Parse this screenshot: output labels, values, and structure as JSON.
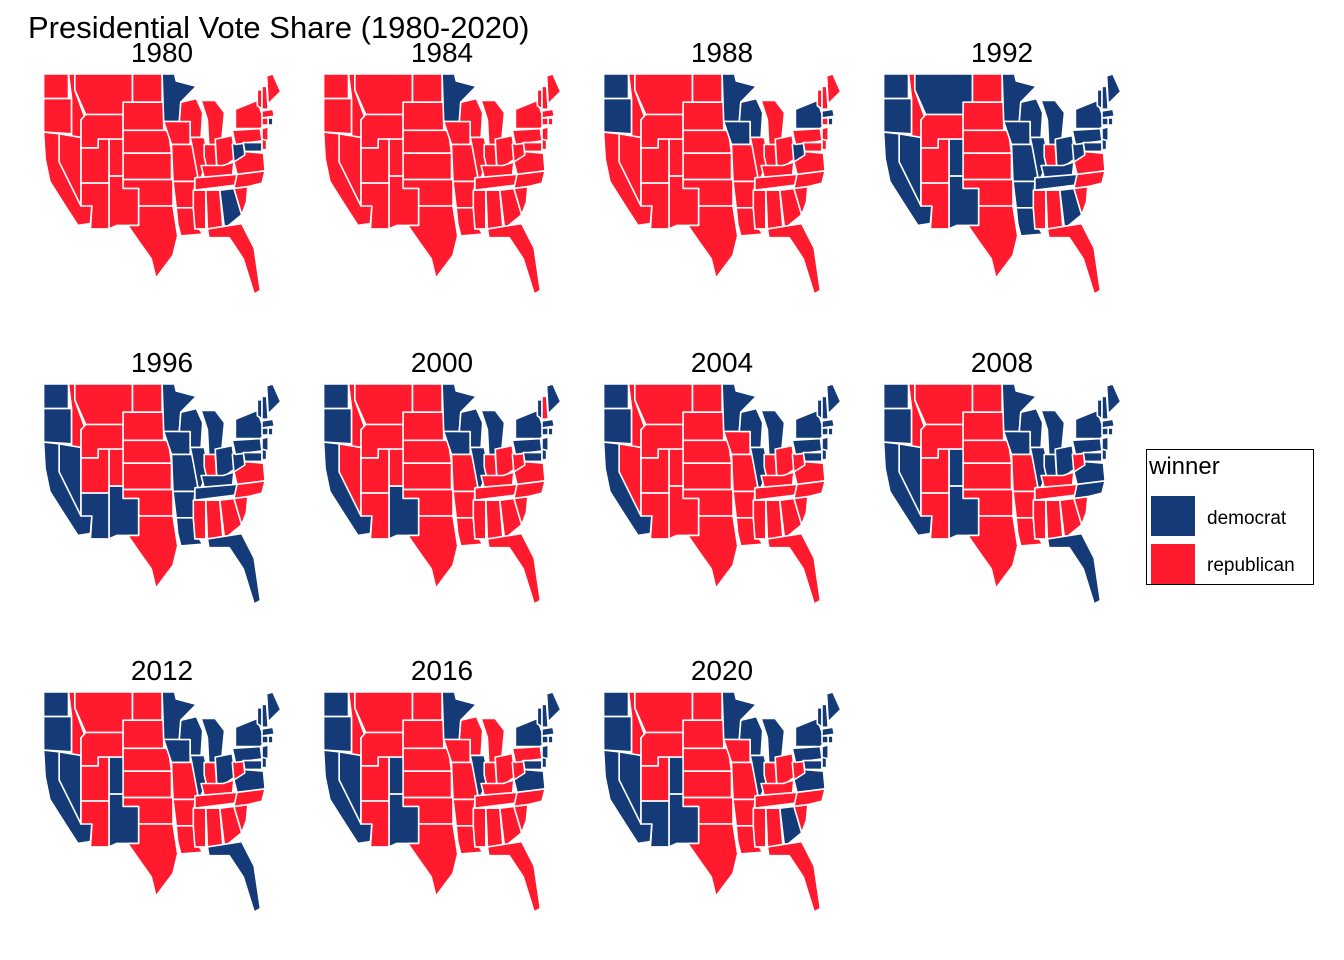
{
  "title": "Presidential Vote Share (1980-2020)",
  "colors": {
    "democrat": "#143a78",
    "republican": "#ff1a2e",
    "border": "#ffffff"
  },
  "legend": {
    "title": "winner",
    "items": [
      {
        "label": "democrat",
        "key": "democrat"
      },
      {
        "label": "republican",
        "key": "republican"
      }
    ]
  },
  "panels": [
    {
      "year": "1980",
      "winners": {
        "WA": "R",
        "OR": "R",
        "CA": "R",
        "ID": "R",
        "NV": "R",
        "MT": "R",
        "WY": "R",
        "UT": "R",
        "AZ": "R",
        "CO": "R",
        "NM": "R",
        "ND": "R",
        "SD": "R",
        "NE": "R",
        "KS": "R",
        "OK": "R",
        "TX": "R",
        "MN": "D",
        "IA": "R",
        "MO": "R",
        "AR": "R",
        "LA": "R",
        "WI": "R",
        "IL": "R",
        "MI": "R",
        "IN": "R",
        "OH": "R",
        "KY": "R",
        "TN": "R",
        "MS": "R",
        "AL": "R",
        "GA": "D",
        "FL": "R",
        "SC": "R",
        "NC": "R",
        "VA": "R",
        "WV": "D",
        "PA": "R",
        "NY": "R",
        "MD": "D",
        "DE": "R",
        "NJ": "R",
        "VT": "R",
        "NH": "R",
        "ME": "R",
        "MA": "R",
        "CT": "R",
        "RI": "D"
      }
    },
    {
      "year": "1984",
      "winners": {
        "WA": "R",
        "OR": "R",
        "CA": "R",
        "ID": "R",
        "NV": "R",
        "MT": "R",
        "WY": "R",
        "UT": "R",
        "AZ": "R",
        "CO": "R",
        "NM": "R",
        "ND": "R",
        "SD": "R",
        "NE": "R",
        "KS": "R",
        "OK": "R",
        "TX": "R",
        "MN": "D",
        "IA": "R",
        "MO": "R",
        "AR": "R",
        "LA": "R",
        "WI": "R",
        "IL": "R",
        "MI": "R",
        "IN": "R",
        "OH": "R",
        "KY": "R",
        "TN": "R",
        "MS": "R",
        "AL": "R",
        "GA": "R",
        "FL": "R",
        "SC": "R",
        "NC": "R",
        "VA": "R",
        "WV": "R",
        "PA": "R",
        "NY": "R",
        "MD": "R",
        "DE": "R",
        "NJ": "R",
        "VT": "R",
        "NH": "R",
        "ME": "R",
        "MA": "R",
        "CT": "R",
        "RI": "R"
      }
    },
    {
      "year": "1988",
      "winners": {
        "WA": "D",
        "OR": "D",
        "CA": "R",
        "ID": "R",
        "NV": "R",
        "MT": "R",
        "WY": "R",
        "UT": "R",
        "AZ": "R",
        "CO": "R",
        "NM": "R",
        "ND": "R",
        "SD": "R",
        "NE": "R",
        "KS": "R",
        "OK": "R",
        "TX": "R",
        "MN": "D",
        "IA": "D",
        "MO": "R",
        "AR": "R",
        "LA": "R",
        "WI": "D",
        "IL": "R",
        "MI": "R",
        "IN": "R",
        "OH": "R",
        "KY": "R",
        "TN": "R",
        "MS": "R",
        "AL": "R",
        "GA": "R",
        "FL": "R",
        "SC": "R",
        "NC": "R",
        "VA": "R",
        "WV": "D",
        "PA": "R",
        "NY": "D",
        "MD": "R",
        "DE": "R",
        "NJ": "R",
        "VT": "R",
        "NH": "R",
        "ME": "R",
        "MA": "D",
        "CT": "R",
        "RI": "D"
      }
    },
    {
      "year": "1992",
      "winners": {
        "WA": "D",
        "OR": "D",
        "CA": "D",
        "ID": "R",
        "NV": "D",
        "MT": "D",
        "WY": "R",
        "UT": "R",
        "AZ": "R",
        "CO": "D",
        "NM": "D",
        "ND": "R",
        "SD": "R",
        "NE": "R",
        "KS": "R",
        "OK": "R",
        "TX": "R",
        "MN": "D",
        "IA": "D",
        "MO": "D",
        "AR": "D",
        "LA": "D",
        "WI": "D",
        "IL": "D",
        "MI": "D",
        "IN": "R",
        "OH": "D",
        "KY": "D",
        "TN": "D",
        "MS": "R",
        "AL": "R",
        "GA": "D",
        "FL": "R",
        "SC": "R",
        "NC": "R",
        "VA": "R",
        "WV": "D",
        "PA": "D",
        "NY": "D",
        "MD": "D",
        "DE": "D",
        "NJ": "D",
        "VT": "D",
        "NH": "D",
        "ME": "D",
        "MA": "D",
        "CT": "D",
        "RI": "D"
      }
    },
    {
      "year": "1996",
      "winners": {
        "WA": "D",
        "OR": "D",
        "CA": "D",
        "ID": "R",
        "NV": "D",
        "MT": "R",
        "WY": "R",
        "UT": "R",
        "AZ": "D",
        "CO": "R",
        "NM": "D",
        "ND": "R",
        "SD": "R",
        "NE": "R",
        "KS": "R",
        "OK": "R",
        "TX": "R",
        "MN": "D",
        "IA": "D",
        "MO": "D",
        "AR": "D",
        "LA": "D",
        "WI": "D",
        "IL": "D",
        "MI": "D",
        "IN": "R",
        "OH": "D",
        "KY": "D",
        "TN": "D",
        "MS": "R",
        "AL": "R",
        "GA": "R",
        "FL": "D",
        "SC": "R",
        "NC": "R",
        "VA": "R",
        "WV": "D",
        "PA": "D",
        "NY": "D",
        "MD": "D",
        "DE": "D",
        "NJ": "D",
        "VT": "D",
        "NH": "D",
        "ME": "D",
        "MA": "D",
        "CT": "D",
        "RI": "D"
      }
    },
    {
      "year": "2000",
      "winners": {
        "WA": "D",
        "OR": "D",
        "CA": "D",
        "ID": "R",
        "NV": "R",
        "MT": "R",
        "WY": "R",
        "UT": "R",
        "AZ": "R",
        "CO": "R",
        "NM": "D",
        "ND": "R",
        "SD": "R",
        "NE": "R",
        "KS": "R",
        "OK": "R",
        "TX": "R",
        "MN": "D",
        "IA": "D",
        "MO": "R",
        "AR": "R",
        "LA": "R",
        "WI": "D",
        "IL": "D",
        "MI": "D",
        "IN": "R",
        "OH": "R",
        "KY": "R",
        "TN": "R",
        "MS": "R",
        "AL": "R",
        "GA": "R",
        "FL": "R",
        "SC": "R",
        "NC": "R",
        "VA": "R",
        "WV": "R",
        "PA": "D",
        "NY": "D",
        "MD": "D",
        "DE": "D",
        "NJ": "D",
        "VT": "D",
        "NH": "R",
        "ME": "D",
        "MA": "D",
        "CT": "D",
        "RI": "D"
      }
    },
    {
      "year": "2004",
      "winners": {
        "WA": "D",
        "OR": "D",
        "CA": "D",
        "ID": "R",
        "NV": "R",
        "MT": "R",
        "WY": "R",
        "UT": "R",
        "AZ": "R",
        "CO": "R",
        "NM": "R",
        "ND": "R",
        "SD": "R",
        "NE": "R",
        "KS": "R",
        "OK": "R",
        "TX": "R",
        "MN": "D",
        "IA": "R",
        "MO": "R",
        "AR": "R",
        "LA": "R",
        "WI": "D",
        "IL": "D",
        "MI": "D",
        "IN": "R",
        "OH": "R",
        "KY": "R",
        "TN": "R",
        "MS": "R",
        "AL": "R",
        "GA": "R",
        "FL": "R",
        "SC": "R",
        "NC": "R",
        "VA": "R",
        "WV": "R",
        "PA": "D",
        "NY": "D",
        "MD": "D",
        "DE": "D",
        "NJ": "D",
        "VT": "D",
        "NH": "D",
        "ME": "D",
        "MA": "D",
        "CT": "D",
        "RI": "D"
      }
    },
    {
      "year": "2008",
      "winners": {
        "WA": "D",
        "OR": "D",
        "CA": "D",
        "ID": "R",
        "NV": "D",
        "MT": "R",
        "WY": "R",
        "UT": "R",
        "AZ": "R",
        "CO": "D",
        "NM": "D",
        "ND": "R",
        "SD": "R",
        "NE": "R",
        "KS": "R",
        "OK": "R",
        "TX": "R",
        "MN": "D",
        "IA": "D",
        "MO": "R",
        "AR": "R",
        "LA": "R",
        "WI": "D",
        "IL": "D",
        "MI": "D",
        "IN": "D",
        "OH": "D",
        "KY": "R",
        "TN": "R",
        "MS": "R",
        "AL": "R",
        "GA": "R",
        "FL": "D",
        "SC": "R",
        "NC": "D",
        "VA": "D",
        "WV": "R",
        "PA": "D",
        "NY": "D",
        "MD": "D",
        "DE": "D",
        "NJ": "D",
        "VT": "D",
        "NH": "D",
        "ME": "D",
        "MA": "D",
        "CT": "D",
        "RI": "D"
      }
    },
    {
      "year": "2012",
      "winners": {
        "WA": "D",
        "OR": "D",
        "CA": "D",
        "ID": "R",
        "NV": "D",
        "MT": "R",
        "WY": "R",
        "UT": "R",
        "AZ": "R",
        "CO": "D",
        "NM": "D",
        "ND": "R",
        "SD": "R",
        "NE": "R",
        "KS": "R",
        "OK": "R",
        "TX": "R",
        "MN": "D",
        "IA": "D",
        "MO": "R",
        "AR": "R",
        "LA": "R",
        "WI": "D",
        "IL": "D",
        "MI": "D",
        "IN": "R",
        "OH": "D",
        "KY": "R",
        "TN": "R",
        "MS": "R",
        "AL": "R",
        "GA": "R",
        "FL": "D",
        "SC": "R",
        "NC": "R",
        "VA": "D",
        "WV": "R",
        "PA": "D",
        "NY": "D",
        "MD": "D",
        "DE": "D",
        "NJ": "D",
        "VT": "D",
        "NH": "D",
        "ME": "D",
        "MA": "D",
        "CT": "D",
        "RI": "D"
      }
    },
    {
      "year": "2016",
      "winners": {
        "WA": "D",
        "OR": "D",
        "CA": "D",
        "ID": "R",
        "NV": "D",
        "MT": "R",
        "WY": "R",
        "UT": "R",
        "AZ": "R",
        "CO": "D",
        "NM": "D",
        "ND": "R",
        "SD": "R",
        "NE": "R",
        "KS": "R",
        "OK": "R",
        "TX": "R",
        "MN": "D",
        "IA": "R",
        "MO": "R",
        "AR": "R",
        "LA": "R",
        "WI": "R",
        "IL": "D",
        "MI": "R",
        "IN": "R",
        "OH": "R",
        "KY": "R",
        "TN": "R",
        "MS": "R",
        "AL": "R",
        "GA": "R",
        "FL": "R",
        "SC": "R",
        "NC": "R",
        "VA": "D",
        "WV": "R",
        "PA": "R",
        "NY": "D",
        "MD": "D",
        "DE": "D",
        "NJ": "D",
        "VT": "D",
        "NH": "D",
        "ME": "D",
        "MA": "D",
        "CT": "D",
        "RI": "D"
      }
    },
    {
      "year": "2020",
      "winners": {
        "WA": "D",
        "OR": "D",
        "CA": "D",
        "ID": "R",
        "NV": "D",
        "MT": "R",
        "WY": "R",
        "UT": "R",
        "AZ": "D",
        "CO": "D",
        "NM": "D",
        "ND": "R",
        "SD": "R",
        "NE": "R",
        "KS": "R",
        "OK": "R",
        "TX": "R",
        "MN": "D",
        "IA": "R",
        "MO": "R",
        "AR": "R",
        "LA": "R",
        "WI": "D",
        "IL": "D",
        "MI": "D",
        "IN": "R",
        "OH": "R",
        "KY": "R",
        "TN": "R",
        "MS": "R",
        "AL": "R",
        "GA": "D",
        "FL": "R",
        "SC": "R",
        "NC": "R",
        "VA": "D",
        "WV": "R",
        "PA": "D",
        "NY": "D",
        "MD": "D",
        "DE": "D",
        "NJ": "D",
        "VT": "D",
        "NH": "D",
        "ME": "D",
        "MA": "D",
        "CT": "D",
        "RI": "D"
      }
    }
  ]
}
